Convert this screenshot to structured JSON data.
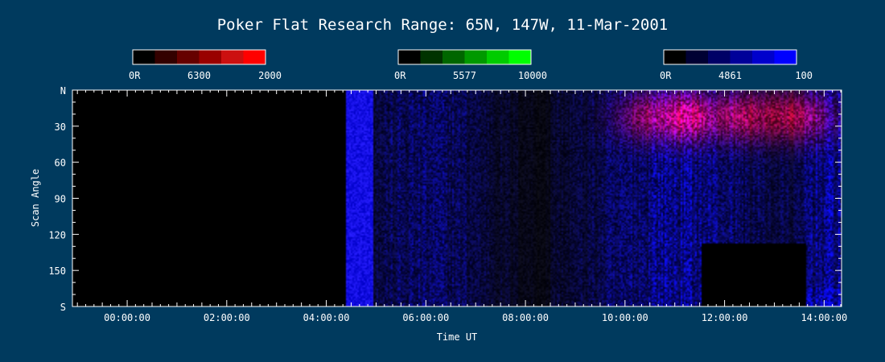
{
  "chart_data": {
    "type": "heatmap",
    "title": "Poker Flat Research Range: 65N, 147W, 11-Mar-2001",
    "xlabel": "Time UT",
    "ylabel": "Scan Angle",
    "x_tick_labels": [
      "00:00:00",
      "02:00:00",
      "04:00:00",
      "06:00:00",
      "08:00:00",
      "10:00:00",
      "12:00:00",
      "14:00:00"
    ],
    "x_tick_hours": [
      0,
      2,
      4,
      6,
      8,
      10,
      12,
      14
    ],
    "xlim_hours": [
      -1.1,
      14.35
    ],
    "y_tick_labels": [
      "N",
      "30",
      "60",
      "90",
      "120",
      "150",
      "S"
    ],
    "y_tick_values": [
      0,
      30,
      60,
      90,
      120,
      150,
      180
    ],
    "ylim": [
      0,
      180
    ],
    "colorbars": [
      {
        "name": "6300",
        "min_label": "0R",
        "max_label": "2000",
        "colors": [
          "#000000",
          "#330000",
          "#660000",
          "#990000",
          "#cc1010",
          "#ff0000"
        ]
      },
      {
        "name": "5577",
        "min_label": "0R",
        "max_label": "10000",
        "colors": [
          "#000000",
          "#003300",
          "#006600",
          "#009900",
          "#00cc00",
          "#00ff00"
        ]
      },
      {
        "name": "4861",
        "min_label": "0R",
        "max_label": "100",
        "colors": [
          "#000000",
          "#000033",
          "#000066",
          "#000099",
          "#0000cc",
          "#0000ff"
        ]
      }
    ],
    "data_start_hour": 4.4,
    "data_gap": {
      "hour_start": 11.55,
      "hour_end": 13.65,
      "angle_start": 128,
      "angle_end": 180
    },
    "colors": {
      "background": "#003a5e",
      "axis": "#ffffff",
      "plot_bg": "#000000"
    }
  }
}
